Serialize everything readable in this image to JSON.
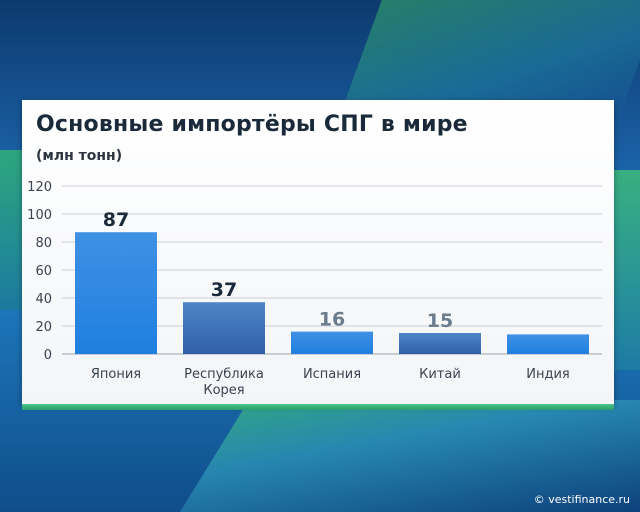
{
  "chart_data": {
    "type": "bar",
    "title": "Основные импортёры СПГ в мире",
    "unit": "(млн тонн)",
    "categories": [
      "Япония",
      "Республика\nКорея",
      "Испания",
      "Китай",
      "Индия"
    ],
    "values": [
      87,
      37,
      16,
      15,
      14
    ],
    "data_labels": [
      "87",
      "37",
      "16",
      "15",
      ""
    ],
    "ylim": [
      0,
      120
    ],
    "yticks": [
      0,
      20,
      40,
      60,
      80,
      100,
      120
    ],
    "grid": true,
    "colors": {
      "bar_bright": "#1f7fe0",
      "bar_dark": "#2f5fa8",
      "label_dark": "#1b2a3a",
      "label_muted": "#6b7c8c"
    }
  },
  "watermark": "© vestifinance.ru"
}
